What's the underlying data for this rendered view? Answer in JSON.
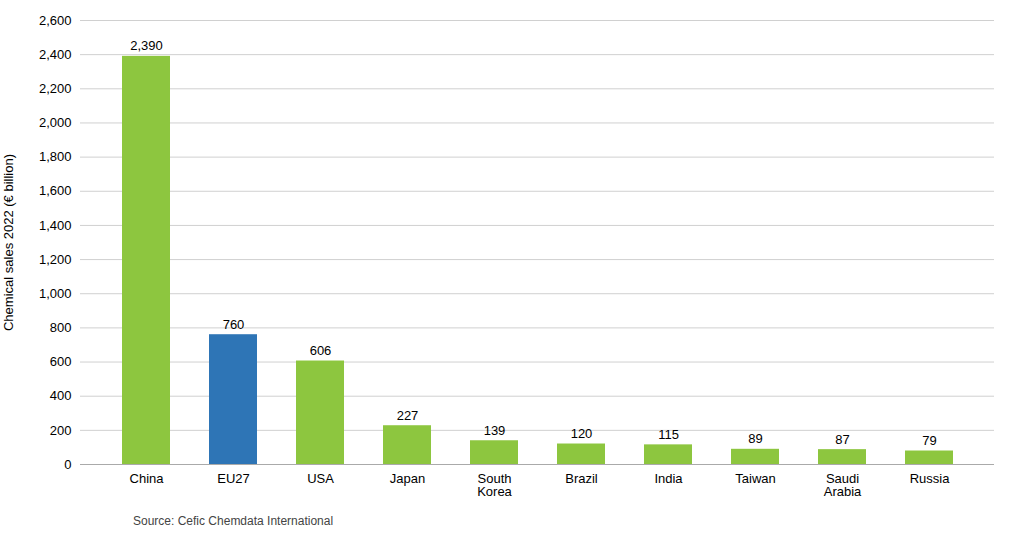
{
  "chart_data": {
    "type": "bar",
    "categories": [
      "China",
      "EU27",
      "USA",
      "Japan",
      "South\nKorea",
      "Brazil",
      "India",
      "Taiwan",
      "Saudi\nArabia",
      "Russia"
    ],
    "values": [
      2390,
      760,
      606,
      227,
      139,
      120,
      115,
      89,
      87,
      79
    ],
    "value_labels": [
      "2,390",
      "760",
      "606",
      "227",
      "139",
      "120",
      "115",
      "89",
      "87",
      "79"
    ],
    "colors": [
      "#8dc63f",
      "#2e75b6",
      "#8dc63f",
      "#8dc63f",
      "#8dc63f",
      "#8dc63f",
      "#8dc63f",
      "#8dc63f",
      "#8dc63f",
      "#8dc63f"
    ],
    "ylabel": "Chemical sales 2022 (€ billion)",
    "ylim": [
      0,
      2600
    ],
    "yticks": [
      0,
      200,
      400,
      600,
      800,
      {
        "value": 1000,
        "label": "1,000"
      },
      {
        "value": 1200,
        "label": "1,200"
      },
      {
        "value": 1400,
        "label": "1,400"
      },
      {
        "value": 1600,
        "label": "1,600"
      },
      {
        "value": 1800,
        "label": "1,800"
      },
      {
        "value": 2000,
        "label": "2,000"
      },
      {
        "value": 2200,
        "label": "2,200"
      },
      {
        "value": 2400,
        "label": "2,400"
      },
      {
        "value": 2600,
        "label": "2,600"
      }
    ],
    "grid": true,
    "data_labels": true,
    "source": "Source: Cefic Chemdata International"
  }
}
